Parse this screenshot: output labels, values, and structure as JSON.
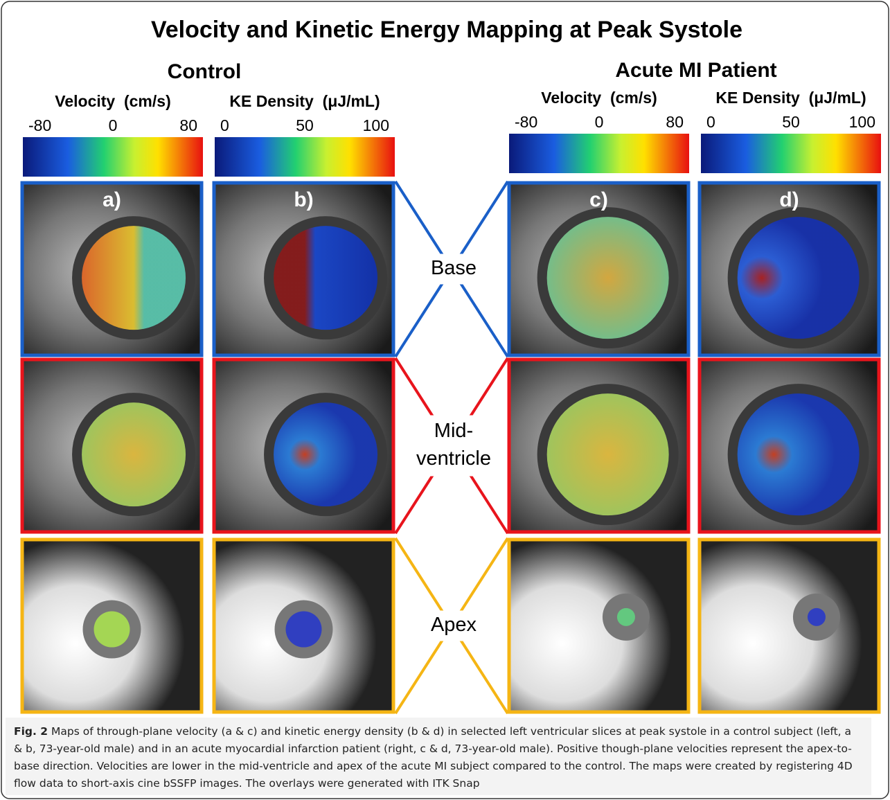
{
  "title": "Velocity and Kinetic Energy Mapping at Peak Systole",
  "groups": [
    {
      "name": "Control",
      "colorbars": [
        {
          "label": "Velocity  (cm/s)",
          "ticks": [
            "-80",
            "0",
            "80"
          ]
        },
        {
          "label": "KE Density  (μJ/mL)",
          "ticks": [
            "0",
            "50",
            "100"
          ]
        }
      ],
      "panels": [
        "a)",
        "b)"
      ]
    },
    {
      "name": "Acute MI Patient",
      "colorbars": [
        {
          "label": "Velocity  (cm/s)",
          "ticks": [
            "-80",
            "0",
            "80"
          ]
        },
        {
          "label": "KE Density  (μJ/mL)",
          "ticks": [
            "0",
            "50",
            "100"
          ]
        }
      ],
      "panels": [
        "c)",
        "d)"
      ]
    }
  ],
  "rows": [
    {
      "lines": [
        "Base"
      ]
    },
    {
      "lines": [
        "Mid-",
        "ventricle"
      ]
    },
    {
      "lines": [
        "Apex"
      ]
    }
  ],
  "caption": {
    "label": "Fig. 2",
    "text": "Maps of through-plane velocity (a & c) and kinetic energy density (b & d) in selected left ventricular slices at peak systole in a control subject (left, a & b, 73-year-old male) and in an acute myocardial infarction patient (right, c & d, 73-year-old male). Positive though-plane velocities represent the apex-to-base direction. Velocities are lower in the mid-ventricle and apex of the acute MI subject compared to the control. The maps were created by registering 4D flow data to short-axis cine bSSFP images. The overlays were generated with ITK Snap"
  }
}
